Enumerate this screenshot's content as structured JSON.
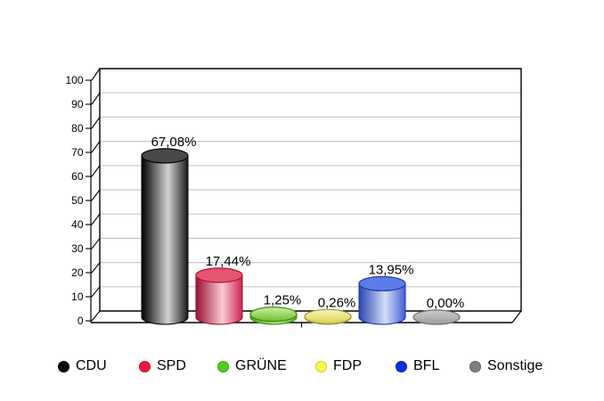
{
  "chart_data": {
    "type": "bar",
    "style": "3d-cylinder",
    "categories": [
      "CDU",
      "SPD",
      "GRÜNE",
      "FDP",
      "BFL",
      "Sonstige"
    ],
    "values": [
      67.08,
      17.44,
      1.25,
      0.26,
      13.95,
      0.0
    ],
    "value_labels": [
      "67,08%",
      "17,44%",
      "1,25%",
      "0,26%",
      "13,95%",
      "0,00%"
    ],
    "ylim": [
      0,
      100
    ],
    "yticks": [
      "0",
      "10",
      "20",
      "30",
      "40",
      "50",
      "60",
      "70",
      "80",
      "90",
      "100"
    ],
    "grid": true,
    "grid_color": "#c8c8c8",
    "legend_position": "bottom",
    "series_colors": [
      {
        "name": "CDU",
        "top": "#494949",
        "topStroke": "#000000",
        "bodyStops": [
          "#000000",
          "#d2d2d2",
          "#1a1a1a"
        ],
        "stroke": "#000000"
      },
      {
        "name": "SPD",
        "top": "#e65672",
        "topStroke": "#b01031",
        "bodyStops": [
          "#9d0f31",
          "#f9ccd6",
          "#cf2450"
        ],
        "stroke": "#8d0e2c"
      },
      {
        "name": "GRÜNE",
        "top": "#8fd052",
        "topStroke": "#3e8c0e",
        "topStops": [
          "#cdf0a2",
          "#6fbe30"
        ],
        "bodyStops": [
          "#4f9f1a",
          "#b9e588",
          "#63ad24"
        ],
        "stroke": "#3e8c0e"
      },
      {
        "name": "FDP",
        "top": "#e8e379",
        "topStroke": "#a09a2c",
        "topStops": [
          "#f9f7c0",
          "#d6d051"
        ],
        "bodyStops": [
          "#b3ac35",
          "#f0eda8",
          "#c9c343"
        ],
        "stroke": "#a09a2c"
      },
      {
        "name": "BFL",
        "top": "#5c7ce8",
        "topStroke": "#2336a8",
        "bodyStops": [
          "#2a46b4",
          "#d3def7",
          "#4161d6"
        ],
        "stroke": "#1e2f96"
      },
      {
        "name": "Sonstige",
        "top": "#b9b9b9",
        "topStroke": "#6f6f6f",
        "topStops": [
          "#cdcdcd",
          "#9b9b9b"
        ],
        "bodyStops": [
          "#8f8f8f",
          "#cfcfcf",
          "#9a9a9a"
        ],
        "stroke": "#6f6f6f"
      }
    ]
  },
  "legend": {
    "items": [
      {
        "label": "CDU",
        "color": "#000000",
        "border": "#000000"
      },
      {
        "label": "SPD",
        "color": "#f2143c",
        "border": "#d00d2e"
      },
      {
        "label": "GRÜNE",
        "color": "#4ecf1a",
        "border": "#36a80d"
      },
      {
        "label": "FDP",
        "color": "#fdfd4a",
        "border": "#c9c92e"
      },
      {
        "label": "BFL",
        "color": "#0d2fe3",
        "border": "#0a23b0"
      },
      {
        "label": "Sonstige",
        "color": "#7f7f7f",
        "border": "#606060"
      }
    ]
  }
}
